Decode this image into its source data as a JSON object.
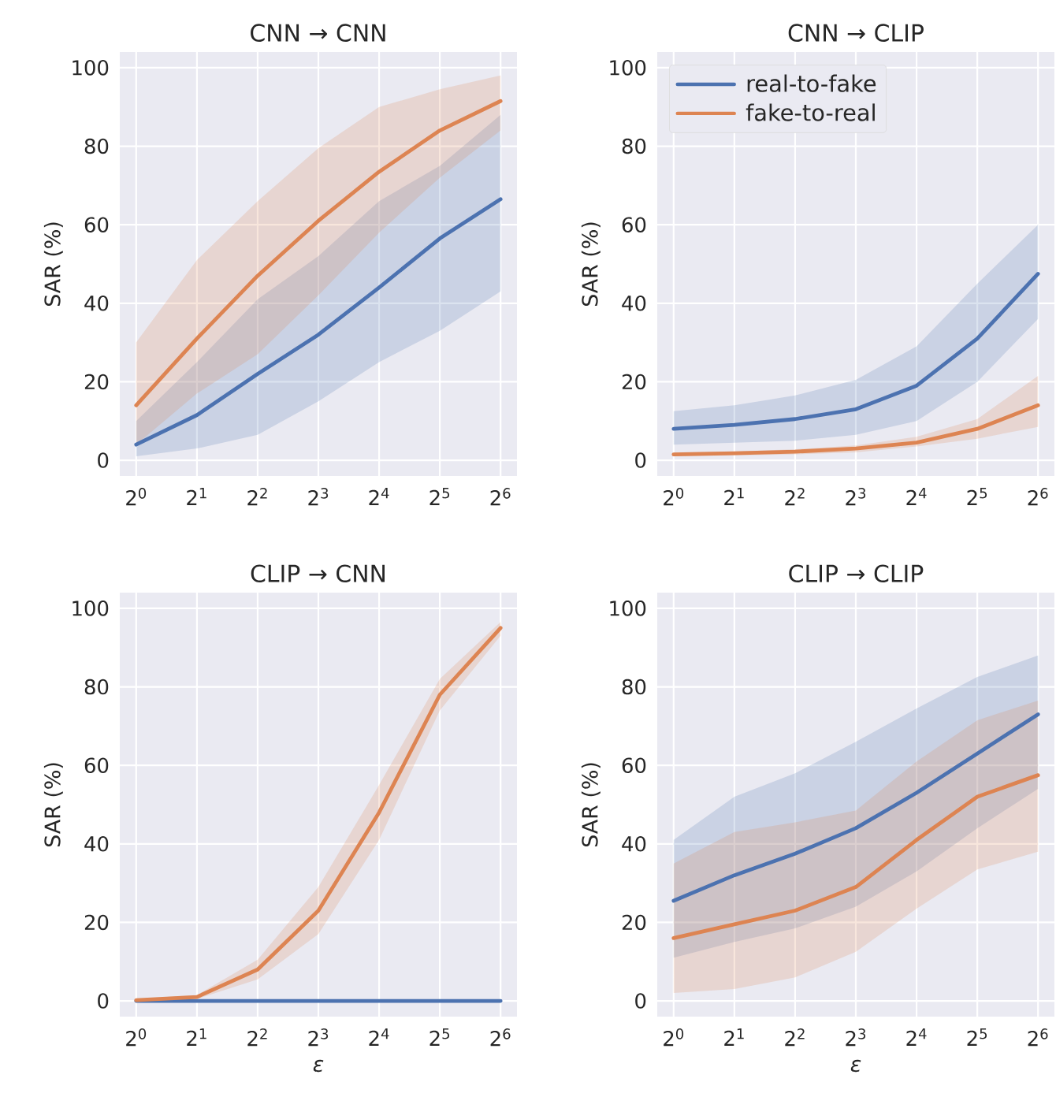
{
  "chart_data": [
    {
      "type": "line",
      "title": "CNN → CNN",
      "ylabel": "SAR (%)",
      "categories": [
        "2$^{0}$",
        "2$^{1}$",
        "2$^{2}$",
        "2$^{3}$",
        "2$^{4}$",
        "2$^{5}$",
        "2$^{6}$"
      ],
      "ylim": [
        -4,
        104
      ],
      "yticks": [
        0,
        20,
        40,
        60,
        80,
        100
      ],
      "grid": true,
      "legend": false,
      "series": [
        {
          "color": "#4c72b0",
          "values": [
            4,
            11.5,
            22,
            32,
            44,
            56.5,
            66.5
          ],
          "lower": [
            1,
            3,
            6.5,
            15,
            25,
            33,
            43
          ],
          "upper": [
            10,
            25,
            41,
            52,
            66,
            75,
            88
          ]
        },
        {
          "color": "#dd8452",
          "values": [
            14,
            31,
            47,
            61,
            73.5,
            84,
            91.5
          ],
          "lower": [
            4,
            17,
            27,
            42,
            58,
            72,
            84
          ],
          "upper": [
            30,
            51,
            66,
            79.5,
            90,
            94.5,
            98
          ]
        }
      ]
    },
    {
      "type": "line",
      "title": "CNN → CLIP",
      "ylabel": "SAR (%)",
      "categories": [
        "2$^{0}$",
        "2$^{1}$",
        "2$^{2}$",
        "2$^{3}$",
        "2$^{4}$",
        "2$^{5}$",
        "2$^{6}$"
      ],
      "ylim": [
        -4,
        104
      ],
      "yticks": [
        0,
        20,
        40,
        60,
        80,
        100
      ],
      "grid": true,
      "legend": "top left",
      "series": [
        {
          "name": "real-to-fake",
          "color": "#4c72b0",
          "values": [
            8,
            9,
            10.5,
            13,
            19,
            31,
            47.5
          ],
          "lower": [
            4,
            4.5,
            5,
            6.5,
            10,
            20,
            36
          ],
          "upper": [
            12.5,
            14,
            16.5,
            20.5,
            29,
            45,
            60
          ]
        },
        {
          "name": "fake-to-real",
          "color": "#dd8452",
          "values": [
            1.5,
            1.8,
            2.2,
            3,
            4.5,
            8,
            14
          ],
          "lower": [
            1,
            1.2,
            1.5,
            2,
            3.5,
            5.5,
            8.5
          ],
          "upper": [
            2,
            2.2,
            2.8,
            3.8,
            6,
            10.5,
            21.5
          ]
        }
      ]
    },
    {
      "type": "line",
      "title": "CLIP → CNN",
      "xlabel": "ε",
      "ylabel": "SAR (%)",
      "categories": [
        "2$^{0}$",
        "2$^{1}$",
        "2$^{2}$",
        "2$^{3}$",
        "2$^{4}$",
        "2$^{5}$",
        "2$^{6}$"
      ],
      "ylim": [
        -4,
        104
      ],
      "yticks": [
        0,
        20,
        40,
        60,
        80,
        100
      ],
      "grid": true,
      "legend": false,
      "series": [
        {
          "color": "#4c72b0",
          "values": [
            0,
            0,
            0,
            0,
            0,
            0,
            0
          ]
        },
        {
          "color": "#dd8452",
          "values": [
            0.2,
            1,
            8,
            23,
            48,
            78,
            95
          ],
          "lower": [
            0,
            0.5,
            5.5,
            17,
            41,
            74,
            93
          ],
          "upper": [
            0.5,
            1.5,
            10.5,
            29,
            55,
            82,
            96.5
          ]
        }
      ]
    },
    {
      "type": "line",
      "title": "CLIP → CLIP",
      "xlabel": "ε",
      "ylabel": "SAR (%)",
      "categories": [
        "2$^{0}$",
        "2$^{1}$",
        "2$^{2}$",
        "2$^{3}$",
        "2$^{4}$",
        "2$^{5}$",
        "2$^{6}$"
      ],
      "ylim": [
        -4,
        104
      ],
      "yticks": [
        0,
        20,
        40,
        60,
        80,
        100
      ],
      "grid": true,
      "legend": false,
      "series": [
        {
          "color": "#4c72b0",
          "values": [
            25.5,
            32,
            37.5,
            44,
            53,
            63,
            73
          ],
          "lower": [
            11,
            15,
            18.5,
            24,
            33,
            44,
            54
          ],
          "upper": [
            41,
            52,
            58,
            66,
            74.5,
            82.5,
            88
          ]
        },
        {
          "color": "#dd8452",
          "values": [
            16,
            19.5,
            23,
            29,
            41,
            52,
            57.5
          ],
          "lower": [
            2,
            3,
            6,
            12.5,
            23.5,
            33.5,
            38
          ],
          "upper": [
            35,
            43,
            45.5,
            48.5,
            61,
            71.5,
            76.5
          ]
        }
      ]
    }
  ]
}
